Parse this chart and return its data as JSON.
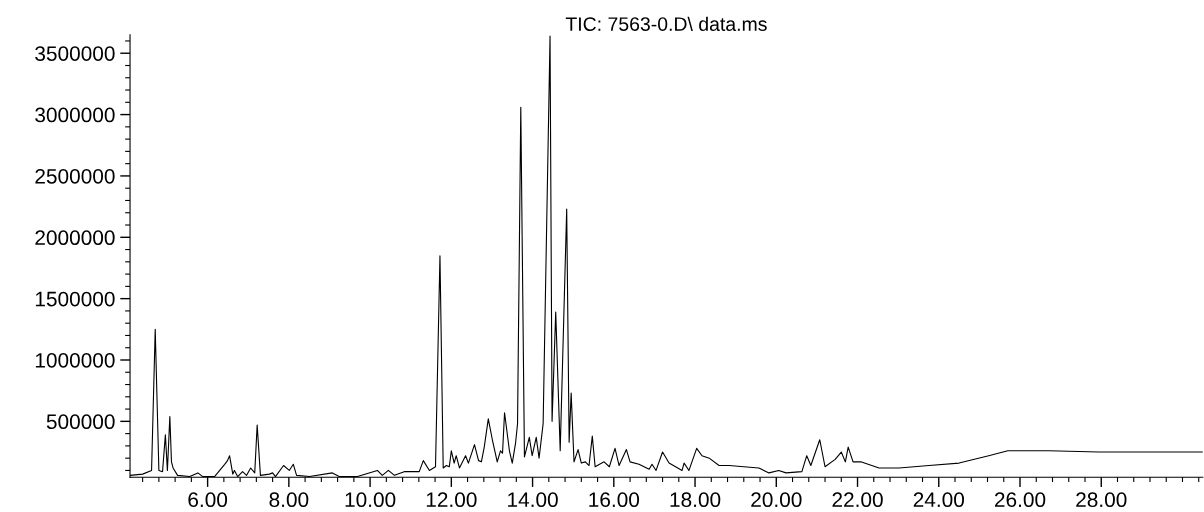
{
  "chart_data": {
    "type": "line",
    "title": "TIC: 7563-0.D\\ data.ms",
    "line_style": "solid",
    "marker": "none",
    "x": [
      4.09,
      4.4,
      4.62,
      4.71,
      4.8,
      4.89,
      4.96,
      5.01,
      5.07,
      5.11,
      5.15,
      5.26,
      5.56,
      5.76,
      5.88,
      6.17,
      6.42,
      6.49,
      6.54,
      6.62,
      6.66,
      6.74,
      6.86,
      6.96,
      7.06,
      7.16,
      7.22,
      7.3,
      7.52,
      7.6,
      7.67,
      7.87,
      8.01,
      8.11,
      8.19,
      8.51,
      9.07,
      9.24,
      9.69,
      10.18,
      10.3,
      10.45,
      10.6,
      10.84,
      11.21,
      11.31,
      11.46,
      11.61,
      11.72,
      11.8,
      11.88,
      11.95,
      12.0,
      12.07,
      12.12,
      12.2,
      12.35,
      12.42,
      12.57,
      12.67,
      12.74,
      12.81,
      12.91,
      13.01,
      13.13,
      13.21,
      13.26,
      13.31,
      13.43,
      13.5,
      13.58,
      13.63,
      13.71,
      13.8,
      13.92,
      13.99,
      14.09,
      14.16,
      14.26,
      14.43,
      14.48,
      14.57,
      14.68,
      14.84,
      14.9,
      14.95,
      15.02,
      15.12,
      15.2,
      15.3,
      15.39,
      15.47,
      15.54,
      15.76,
      15.89,
      16.03,
      16.13,
      16.31,
      16.4,
      16.62,
      16.87,
      16.94,
      17.04,
      17.2,
      17.36,
      17.68,
      17.73,
      17.85,
      18.04,
      18.17,
      18.35,
      18.59,
      18.84,
      19.2,
      19.57,
      19.82,
      20.06,
      20.24,
      20.63,
      20.75,
      20.85,
      21.07,
      21.2,
      21.45,
      21.6,
      21.7,
      21.77,
      21.89,
      22.08,
      22.53,
      23.02,
      23.76,
      24.5,
      25.23,
      25.7,
      26.71,
      27.94,
      29.17,
      30.49
    ],
    "series": [
      {
        "color": "#000000",
        "values": [
          60000,
          70000,
          100000,
          1250000,
          100000,
          90000,
          390000,
          100000,
          540000,
          170000,
          120000,
          60000,
          50000,
          80000,
          50000,
          50000,
          150000,
          180000,
          220000,
          70000,
          100000,
          50000,
          90000,
          60000,
          120000,
          80000,
          470000,
          60000,
          70000,
          80000,
          50000,
          140000,
          100000,
          150000,
          60000,
          50000,
          80000,
          50000,
          50000,
          100000,
          60000,
          100000,
          60000,
          90000,
          90000,
          180000,
          100000,
          130000,
          1850000,
          120000,
          140000,
          130000,
          260000,
          160000,
          220000,
          120000,
          220000,
          160000,
          310000,
          180000,
          170000,
          290000,
          520000,
          350000,
          170000,
          260000,
          240000,
          570000,
          260000,
          160000,
          320000,
          480000,
          3060000,
          210000,
          370000,
          220000,
          370000,
          200000,
          480000,
          3640000,
          500000,
          1390000,
          260000,
          2230000,
          330000,
          730000,
          170000,
          270000,
          160000,
          170000,
          140000,
          380000,
          130000,
          170000,
          130000,
          280000,
          140000,
          270000,
          170000,
          150000,
          110000,
          150000,
          100000,
          250000,
          160000,
          100000,
          160000,
          100000,
          280000,
          220000,
          200000,
          140000,
          140000,
          130000,
          120000,
          80000,
          100000,
          80000,
          90000,
          220000,
          140000,
          350000,
          130000,
          190000,
          250000,
          170000,
          290000,
          170000,
          170000,
          120000,
          120000,
          140000,
          160000,
          220000,
          260000,
          260000,
          250000,
          250000,
          250000
        ]
      }
    ],
    "xlim": [
      4.09,
      30.5
    ],
    "ylim": [
      45000,
      3650000
    ],
    "xticks": [
      {
        "value": 4.4,
        "label": null
      },
      {
        "value": 4.8,
        "label": null
      },
      {
        "value": 5.2,
        "label": null
      },
      {
        "value": 5.6,
        "label": null
      },
      {
        "value": 6.0,
        "label": "6.00"
      },
      {
        "value": 6.4,
        "label": null
      },
      {
        "value": 6.8,
        "label": null
      },
      {
        "value": 7.2,
        "label": null
      },
      {
        "value": 7.6,
        "label": null
      },
      {
        "value": 8.0,
        "label": "8.00"
      },
      {
        "value": 8.4,
        "label": null
      },
      {
        "value": 8.8,
        "label": null
      },
      {
        "value": 9.2,
        "label": null
      },
      {
        "value": 9.6,
        "label": null
      },
      {
        "value": 10.0,
        "label": "10.00"
      },
      {
        "value": 10.4,
        "label": null
      },
      {
        "value": 10.8,
        "label": null
      },
      {
        "value": 11.2,
        "label": null
      },
      {
        "value": 11.6,
        "label": null
      },
      {
        "value": 12.0,
        "label": "12.00"
      },
      {
        "value": 12.4,
        "label": null
      },
      {
        "value": 12.8,
        "label": null
      },
      {
        "value": 13.2,
        "label": null
      },
      {
        "value": 13.6,
        "label": null
      },
      {
        "value": 14.0,
        "label": "14.00"
      },
      {
        "value": 14.4,
        "label": null
      },
      {
        "value": 14.8,
        "label": null
      },
      {
        "value": 15.2,
        "label": null
      },
      {
        "value": 15.6,
        "label": null
      },
      {
        "value": 16.0,
        "label": "16.00"
      },
      {
        "value": 16.4,
        "label": null
      },
      {
        "value": 16.8,
        "label": null
      },
      {
        "value": 17.2,
        "label": null
      },
      {
        "value": 17.6,
        "label": null
      },
      {
        "value": 18.0,
        "label": "18.00"
      },
      {
        "value": 18.4,
        "label": null
      },
      {
        "value": 18.8,
        "label": null
      },
      {
        "value": 19.2,
        "label": null
      },
      {
        "value": 19.6,
        "label": null
      },
      {
        "value": 20.0,
        "label": "20.00"
      },
      {
        "value": 20.4,
        "label": null
      },
      {
        "value": 20.8,
        "label": null
      },
      {
        "value": 21.2,
        "label": null
      },
      {
        "value": 21.6,
        "label": null
      },
      {
        "value": 22.0,
        "label": "22.00"
      },
      {
        "value": 22.4,
        "label": null
      },
      {
        "value": 22.8,
        "label": null
      },
      {
        "value": 23.2,
        "label": null
      },
      {
        "value": 23.6,
        "label": null
      },
      {
        "value": 24.0,
        "label": "24.00"
      },
      {
        "value": 24.4,
        "label": null
      },
      {
        "value": 24.8,
        "label": null
      },
      {
        "value": 25.2,
        "label": null
      },
      {
        "value": 25.6,
        "label": null
      },
      {
        "value": 26.0,
        "label": "26.00"
      },
      {
        "value": 26.4,
        "label": null
      },
      {
        "value": 26.8,
        "label": null
      },
      {
        "value": 27.2,
        "label": null
      },
      {
        "value": 27.6,
        "label": null
      },
      {
        "value": 28.0,
        "label": "28.00"
      },
      {
        "value": 28.4,
        "label": null
      },
      {
        "value": 28.8,
        "label": null
      },
      {
        "value": 29.2,
        "label": null
      },
      {
        "value": 29.6,
        "label": null
      },
      {
        "value": 30.0,
        "label": null
      },
      {
        "value": 30.4,
        "label": null
      }
    ],
    "yticks": [
      {
        "value": 100000,
        "label": null
      },
      {
        "value": 200000,
        "label": null
      },
      {
        "value": 300000,
        "label": null
      },
      {
        "value": 400000,
        "label": null
      },
      500000,
      {
        "value": 600000,
        "label": null
      },
      {
        "value": 700000,
        "label": null
      },
      {
        "value": 800000,
        "label": null
      },
      {
        "value": 900000,
        "label": null
      },
      1000000,
      {
        "value": 1100000,
        "label": null
      },
      {
        "value": 1200000,
        "label": null
      },
      {
        "value": 1300000,
        "label": null
      },
      {
        "value": 1400000,
        "label": null
      },
      1500000,
      {
        "value": 1600000,
        "label": null
      },
      {
        "value": 1700000,
        "label": null
      },
      {
        "value": 1800000,
        "label": null
      },
      {
        "value": 1900000,
        "label": null
      },
      2000000,
      {
        "value": 2100000,
        "label": null
      },
      {
        "value": 2200000,
        "label": null
      },
      {
        "value": 2300000,
        "label": null
      },
      {
        "value": 2400000,
        "label": null
      },
      2500000,
      {
        "value": 2600000,
        "label": null
      },
      {
        "value": 2700000,
        "label": null
      },
      {
        "value": 2800000,
        "label": null
      },
      {
        "value": 2900000,
        "label": null
      },
      3000000,
      {
        "value": 3100000,
        "label": null
      },
      {
        "value": 3200000,
        "label": null
      },
      {
        "value": 3300000,
        "label": null
      },
      {
        "value": 3400000,
        "label": null
      },
      3500000,
      {
        "value": 3600000,
        "label": null
      }
    ]
  }
}
